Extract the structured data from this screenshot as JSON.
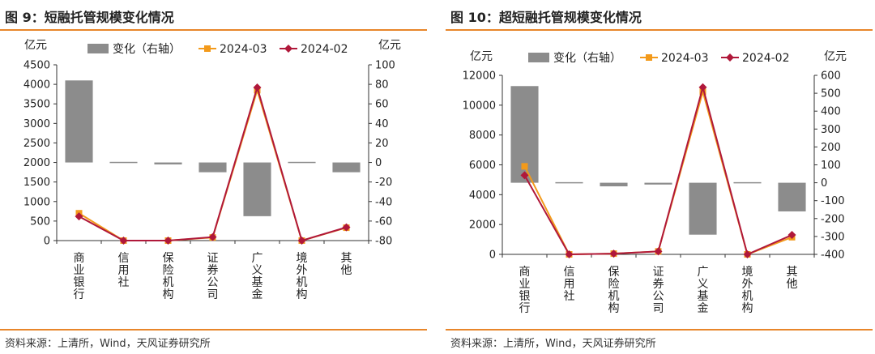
{
  "figures": [
    {
      "title": "图 9：短融托管规模变化情况",
      "source": "资料来源：上清所，Wind，天风证券研究所",
      "chart_data": {
        "type": "bar",
        "categories": [
          "商业银行",
          "信用社",
          "保险机构",
          "证券公司",
          "广义基金",
          "境外机构",
          "其他"
        ],
        "ylabel_left": "亿元",
        "ylabel_right": "亿元",
        "ylim_left": [
          0,
          4500
        ],
        "ylim_right": [
          -80,
          100
        ],
        "yticks_left": [
          0,
          500,
          1000,
          1500,
          2000,
          2500,
          3000,
          3500,
          4000,
          4500
        ],
        "yticks_right": [
          -80,
          -60,
          -40,
          -20,
          0,
          20,
          40,
          60,
          80,
          100
        ],
        "legend_position": "top",
        "series": [
          {
            "name": "变化（右轴）",
            "kind": "bar",
            "axis": "right",
            "color": "#8c8c8c",
            "values": [
              84,
              -1,
              -2,
              -10,
              -55,
              0,
              -10
            ]
          },
          {
            "name": "2024-03",
            "kind": "line",
            "axis": "left",
            "color": "#f39a1b",
            "marker": "square",
            "values": [
              700,
              0,
              0,
              80,
              3850,
              0,
              330
            ]
          },
          {
            "name": "2024-02",
            "kind": "line",
            "axis": "left",
            "color": "#b0183a",
            "marker": "diamond",
            "values": [
              620,
              0,
              0,
              90,
              3920,
              0,
              340
            ]
          }
        ]
      }
    },
    {
      "title": "图 10：超短融托管规模变化情况",
      "source": "资料来源：上清所，Wind，天风证券研究所",
      "chart_data": {
        "type": "bar",
        "categories": [
          "商业银行",
          "信用社",
          "保险机构",
          "证券公司",
          "广义基金",
          "境外机构",
          "其他"
        ],
        "ylabel_left": "亿元",
        "ylabel_right": "亿元",
        "ylim_left": [
          0,
          12000
        ],
        "ylim_right": [
          -400,
          600
        ],
        "yticks_left": [
          0,
          2000,
          4000,
          6000,
          8000,
          10000,
          12000
        ],
        "yticks_right": [
          -400,
          -300,
          -200,
          -100,
          0,
          100,
          200,
          300,
          400,
          500,
          600
        ],
        "legend_position": "top",
        "series": [
          {
            "name": "变化（右轴）",
            "kind": "bar",
            "axis": "right",
            "color": "#8c8c8c",
            "values": [
              540,
              -5,
              -20,
              -10,
              -290,
              0,
              -160
            ]
          },
          {
            "name": "2024-03",
            "kind": "line",
            "axis": "left",
            "color": "#f39a1b",
            "marker": "square",
            "values": [
              5900,
              0,
              50,
              200,
              10900,
              0,
              1150
            ]
          },
          {
            "name": "2024-02",
            "kind": "line",
            "axis": "left",
            "color": "#b0183a",
            "marker": "diamond",
            "values": [
              5300,
              0,
              50,
              200,
              11200,
              0,
              1300
            ]
          }
        ]
      }
    }
  ]
}
